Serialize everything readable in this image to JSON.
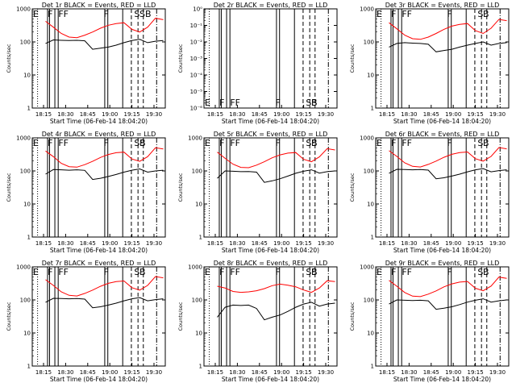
{
  "chart_data": [
    {
      "type": "line",
      "title": "Det 1r BLACK = Events, RED = LLD",
      "xlabel": "Start Time (06-Feb-14 18:04:20)",
      "ylabel": "Counts/sec",
      "x_ticks": [
        "18:15",
        "18:30",
        "18:45",
        "19:00",
        "19:15",
        "19:30"
      ],
      "y_scale": "log",
      "y_ticks": [
        "1",
        "10",
        "100",
        "1000"
      ],
      "ylim": [
        1,
        1000
      ],
      "colors": {
        "events": "#000000",
        "lld": "#ff0000"
      },
      "flags": [
        "E",
        "F",
        "FF",
        "F",
        "S",
        "SB"
      ],
      "series": [
        {
          "name": "Events",
          "color": "#000000",
          "values": [
            90,
            115,
            112,
            110,
            112,
            108,
            60,
            65,
            70,
            80,
            95,
            110,
            120,
            95,
            105,
            110
          ]
        },
        {
          "name": "LLD",
          "color": "#ff0000",
          "values": [
            420,
            280,
            180,
            140,
            135,
            160,
            200,
            260,
            320,
            360,
            380,
            240,
            200,
            280,
            520,
            470
          ]
        }
      ]
    },
    {
      "type": "line",
      "title": "Det 2r BLACK = Events, RED = LLD",
      "xlabel": "Start Time (06-Feb-14 18:04:20)",
      "ylabel": "Counts/sec",
      "x_ticks": [
        "18:15",
        "18:30",
        "18:45",
        "19:00",
        "19:15",
        "19:30"
      ],
      "y_scale": "log",
      "y_ticks": [
        "10⁻⁶",
        "10⁻⁵",
        "10⁻⁴",
        "10⁻³",
        "10⁻²",
        "10⁻¹",
        "10⁰"
      ],
      "ylim": [
        1e-06,
        1
      ],
      "colors": {
        "events": "#000000",
        "lld": "#ff0000"
      },
      "flags": [
        "E",
        "F",
        "FF",
        "F",
        "SS",
        "B"
      ],
      "series": []
    },
    {
      "type": "line",
      "title": "Det 3r BLACK = Events, RED = LLD",
      "xlabel": "Start Time (06-Feb-14 18:04:20)",
      "ylabel": "Counts/sec",
      "x_ticks": [
        "18:15",
        "18:30",
        "18:45",
        "19:00",
        "19:15",
        "19:30"
      ],
      "y_scale": "log",
      "y_ticks": [
        "1",
        "10",
        "100",
        "1000"
      ],
      "ylim": [
        1,
        1000
      ],
      "colors": {
        "events": "#000000",
        "lld": "#ff0000"
      },
      "flags": [
        "E",
        "F",
        "FF",
        "F",
        "S",
        "B"
      ],
      "series": [
        {
          "name": "Events",
          "color": "#000000",
          "values": [
            70,
            90,
            95,
            92,
            90,
            85,
            50,
            55,
            60,
            70,
            80,
            90,
            100,
            80,
            90,
            95
          ]
        },
        {
          "name": "LLD",
          "color": "#ff0000",
          "values": [
            380,
            250,
            160,
            125,
            120,
            140,
            180,
            240,
            300,
            340,
            360,
            220,
            180,
            260,
            480,
            440
          ]
        }
      ]
    },
    {
      "type": "line",
      "title": "Det 4r BLACK = Events, RED = LLD",
      "xlabel": "Start Time (06-Feb-14 18:04:20)",
      "ylabel": "Counts/sec",
      "x_ticks": [
        "18:15",
        "18:30",
        "18:45",
        "19:00",
        "19:15",
        "19:30"
      ],
      "y_scale": "log",
      "y_ticks": [
        "1",
        "10",
        "100",
        "1000"
      ],
      "ylim": [
        1,
        1000
      ],
      "colors": {
        "events": "#000000",
        "lld": "#ff0000"
      },
      "flags": [
        "E",
        "F",
        "FF",
        "F",
        "SS",
        "B"
      ],
      "series": [
        {
          "name": "Events",
          "color": "#000000",
          "values": [
            80,
            110,
            108,
            105,
            108,
            104,
            55,
            60,
            68,
            78,
            92,
            105,
            115,
            92,
            100,
            105
          ]
        },
        {
          "name": "LLD",
          "color": "#ff0000",
          "values": [
            400,
            270,
            170,
            135,
            130,
            155,
            195,
            255,
            315,
            355,
            370,
            230,
            195,
            270,
            500,
            460
          ]
        }
      ]
    },
    {
      "type": "line",
      "title": "Det 5r BLACK = Events, RED = LLD",
      "xlabel": "Start Time (06-Feb-14 18:04:20)",
      "ylabel": "Counts/sec",
      "x_ticks": [
        "18:15",
        "18:30",
        "18:45",
        "19:00",
        "19:15",
        "19:30"
      ],
      "y_scale": "log",
      "y_ticks": [
        "1",
        "10",
        "100",
        "1000"
      ],
      "ylim": [
        1,
        1000
      ],
      "colors": {
        "events": "#000000",
        "lld": "#ff0000"
      },
      "flags": [
        "E",
        "F",
        "FF",
        "F",
        "SS",
        "B"
      ],
      "series": [
        {
          "name": "Events",
          "color": "#000000",
          "values": [
            60,
            100,
            98,
            95,
            96,
            92,
            45,
            50,
            58,
            70,
            85,
            98,
            108,
            86,
            95,
            100
          ]
        },
        {
          "name": "LLD",
          "color": "#ff0000",
          "values": [
            370,
            240,
            160,
            128,
            125,
            150,
            190,
            250,
            305,
            345,
            360,
            225,
            190,
            265,
            470,
            430
          ]
        }
      ]
    },
    {
      "type": "line",
      "title": "Det 6r BLACK = Events, RED = LLD",
      "xlabel": "Start Time (06-Feb-14 18:04:20)",
      "ylabel": "Counts/sec",
      "x_ticks": [
        "18:15",
        "18:30",
        "18:45",
        "19:00",
        "19:15",
        "19:30"
      ],
      "y_scale": "log",
      "y_ticks": [
        "1",
        "10",
        "100",
        "1000"
      ],
      "ylim": [
        1,
        1000
      ],
      "colors": {
        "events": "#000000",
        "lld": "#ff0000"
      },
      "flags": [
        "E",
        "F",
        "FF",
        "F",
        "S",
        "B"
      ],
      "series": [
        {
          "name": "Events",
          "color": "#000000",
          "values": [
            85,
            112,
            110,
            108,
            110,
            106,
            58,
            62,
            70,
            80,
            94,
            108,
            118,
            94,
            102,
            108
          ]
        },
        {
          "name": "LLD",
          "color": "#ff0000",
          "values": [
            410,
            275,
            175,
            138,
            132,
            158,
            198,
            258,
            318,
            358,
            375,
            235,
            198,
            275,
            510,
            465
          ]
        }
      ]
    },
    {
      "type": "line",
      "title": "Det 7r BLACK = Events, RED = LLD",
      "xlabel": "Start Time (06-Feb-14 18:04:20)",
      "ylabel": "Counts/sec",
      "x_ticks": [
        "18:15",
        "18:30",
        "18:45",
        "19:00",
        "19:15",
        "19:30"
      ],
      "y_scale": "log",
      "y_ticks": [
        "1",
        "10",
        "100",
        "1000"
      ],
      "ylim": [
        1,
        1000
      ],
      "colors": {
        "events": "#000000",
        "lld": "#ff0000"
      },
      "flags": [
        "E",
        "F",
        "FF",
        "F",
        "S",
        "B"
      ],
      "series": [
        {
          "name": "Events",
          "color": "#000000",
          "values": [
            85,
            112,
            110,
            108,
            110,
            106,
            58,
            62,
            70,
            80,
            94,
            108,
            118,
            94,
            102,
            108
          ]
        },
        {
          "name": "LLD",
          "color": "#ff0000",
          "values": [
            410,
            275,
            175,
            138,
            132,
            158,
            198,
            258,
            318,
            358,
            375,
            235,
            198,
            275,
            510,
            465
          ]
        }
      ]
    },
    {
      "type": "line",
      "title": "Det 8r BLACK = Events, RED = LLD",
      "xlabel": "Start Time (06-Feb-14 18:04:20)",
      "ylabel": "Counts/sec",
      "x_ticks": [
        "18:15",
        "18:30",
        "18:45",
        "19:00",
        "19:15",
        "19:30"
      ],
      "y_scale": "log",
      "y_ticks": [
        "1",
        "10",
        "100",
        "1000"
      ],
      "ylim": [
        1,
        1000
      ],
      "colors": {
        "events": "#000000",
        "lld": "#ff0000"
      },
      "flags": [
        "E",
        "F",
        "FF",
        "F",
        "SS",
        "B"
      ],
      "series": [
        {
          "name": "Events",
          "color": "#000000",
          "values": [
            30,
            60,
            70,
            68,
            70,
            55,
            25,
            30,
            35,
            45,
            60,
            75,
            85,
            65,
            75,
            80
          ]
        },
        {
          "name": "LLD",
          "color": "#ff0000",
          "values": [
            260,
            230,
            180,
            170,
            175,
            190,
            220,
            270,
            300,
            280,
            250,
            200,
            170,
            230,
            380,
            360
          ]
        }
      ]
    },
    {
      "type": "line",
      "title": "Det 9r BLACK = Events, RED = LLD",
      "xlabel": "Start Time (06-Feb-14 18:04:20)",
      "ylabel": "Counts/sec",
      "x_ticks": [
        "18:15",
        "18:30",
        "18:45",
        "19:00",
        "19:15",
        "19:30"
      ],
      "y_scale": "log",
      "y_ticks": [
        "1",
        "10",
        "100",
        "1000"
      ],
      "ylim": [
        1,
        1000
      ],
      "colors": {
        "events": "#000000",
        "lld": "#ff0000"
      },
      "flags": [
        "E",
        "F",
        "FF",
        "F",
        "S",
        "B"
      ],
      "series": [
        {
          "name": "Events",
          "color": "#000000",
          "values": [
            75,
            100,
            98,
            96,
            98,
            94,
            52,
            56,
            62,
            72,
            86,
            98,
            108,
            86,
            94,
            100
          ]
        },
        {
          "name": "LLD",
          "color": "#ff0000",
          "values": [
            390,
            260,
            168,
            130,
            126,
            150,
            188,
            248,
            306,
            346,
            362,
            226,
            190,
            262,
            490,
            450
          ]
        }
      ]
    }
  ]
}
